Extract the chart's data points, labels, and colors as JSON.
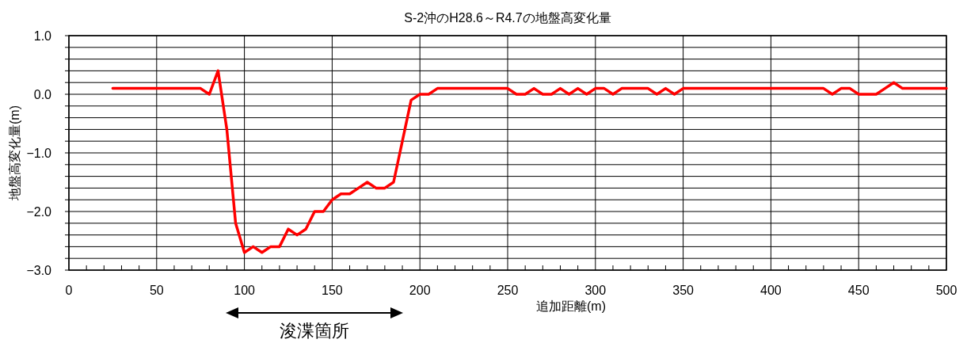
{
  "chart_data": {
    "type": "line",
    "title": "S-2沖のH28.6～R4.7の地盤高変化量",
    "xlabel": "追加距離(m)",
    "ylabel": "地盤高変化量(m)",
    "x": [
      25,
      30,
      35,
      40,
      45,
      50,
      55,
      60,
      65,
      70,
      75,
      80,
      85,
      90,
      95,
      100,
      105,
      110,
      115,
      120,
      125,
      130,
      135,
      140,
      145,
      150,
      155,
      160,
      165,
      170,
      175,
      180,
      185,
      195,
      200,
      205,
      210,
      215,
      220,
      225,
      230,
      235,
      240,
      245,
      250,
      255,
      260,
      265,
      270,
      275,
      280,
      285,
      290,
      295,
      300,
      305,
      310,
      315,
      320,
      325,
      330,
      335,
      340,
      345,
      350,
      355,
      360,
      365,
      370,
      375,
      380,
      385,
      390,
      395,
      400,
      405,
      410,
      415,
      420,
      425,
      430,
      435,
      440,
      445,
      450,
      455,
      460,
      465,
      470,
      475,
      480,
      485,
      490,
      495,
      500
    ],
    "series": [
      {
        "color": "#ff0000",
        "values": [
          0.1,
          0.1,
          0.1,
          0.1,
          0.1,
          0.1,
          0.1,
          0.1,
          0.1,
          0.1,
          0.1,
          0.0,
          0.4,
          -0.6,
          -2.2,
          -2.7,
          -2.6,
          -2.7,
          -2.6,
          -2.6,
          -2.3,
          -2.4,
          -2.3,
          -2.0,
          -2.0,
          -1.8,
          -1.7,
          -1.7,
          -1.6,
          -1.5,
          -1.6,
          -1.6,
          -1.5,
          -0.1,
          0.0,
          0.0,
          0.1,
          0.1,
          0.1,
          0.1,
          0.1,
          0.1,
          0.1,
          0.1,
          0.1,
          0.0,
          0.0,
          0.1,
          0.0,
          0.0,
          0.1,
          0.0,
          0.1,
          0.0,
          0.1,
          0.1,
          0.0,
          0.1,
          0.1,
          0.1,
          0.1,
          0.0,
          0.1,
          0.0,
          0.1,
          0.1,
          0.1,
          0.1,
          0.1,
          0.1,
          0.1,
          0.1,
          0.1,
          0.1,
          0.1,
          0.1,
          0.1,
          0.1,
          0.1,
          0.1,
          0.1,
          0.0,
          0.1,
          0.1,
          0.0,
          0.0,
          0.0,
          0.1,
          0.2,
          0.1,
          0.1,
          0.1,
          0.1,
          0.1,
          0.1
        ]
      }
    ],
    "xlim": [
      0,
      500
    ],
    "xticks": [
      0,
      {
        "value": 10,
        "label": null
      },
      {
        "value": 20,
        "label": null
      },
      {
        "value": 30,
        "label": null
      },
      {
        "value": 40,
        "label": null
      },
      50,
      {
        "value": 60,
        "label": null
      },
      {
        "value": 70,
        "label": null
      },
      {
        "value": 80,
        "label": null
      },
      {
        "value": 90,
        "label": null
      },
      100,
      {
        "value": 110,
        "label": null
      },
      {
        "value": 120,
        "label": null
      },
      {
        "value": 130,
        "label": null
      },
      {
        "value": 140,
        "label": null
      },
      150,
      {
        "value": 160,
        "label": null
      },
      {
        "value": 170,
        "label": null
      },
      {
        "value": 180,
        "label": null
      },
      {
        "value": 190,
        "label": null
      },
      200,
      {
        "value": 210,
        "label": null
      },
      {
        "value": 220,
        "label": null
      },
      {
        "value": 230,
        "label": null
      },
      {
        "value": 240,
        "label": null
      },
      250,
      {
        "value": 260,
        "label": null
      },
      {
        "value": 270,
        "label": null
      },
      {
        "value": 280,
        "label": null
      },
      {
        "value": 290,
        "label": null
      },
      300,
      {
        "value": 310,
        "label": null
      },
      {
        "value": 320,
        "label": null
      },
      {
        "value": 330,
        "label": null
      },
      {
        "value": 340,
        "label": null
      },
      350,
      {
        "value": 360,
        "label": null
      },
      {
        "value": 370,
        "label": null
      },
      {
        "value": 380,
        "label": null
      },
      {
        "value": 390,
        "label": null
      },
      400,
      {
        "value": 410,
        "label": null
      },
      {
        "value": 420,
        "label": null
      },
      {
        "value": 430,
        "label": null
      },
      {
        "value": 440,
        "label": null
      },
      450,
      {
        "value": 460,
        "label": null
      },
      {
        "value": 470,
        "label": null
      },
      {
        "value": 480,
        "label": null
      },
      {
        "value": 490,
        "label": null
      },
      500
    ],
    "ylim": [
      -3,
      1
    ],
    "yticks": [
      {
        "value": -3,
        "label": "−3.0"
      },
      {
        "value": -2.8,
        "label": null
      },
      {
        "value": -2.6,
        "label": null
      },
      {
        "value": -2.4,
        "label": null
      },
      {
        "value": -2.2,
        "label": null
      },
      {
        "value": -2,
        "label": "−2.0"
      },
      {
        "value": -1.8,
        "label": null
      },
      {
        "value": -1.6,
        "label": null
      },
      {
        "value": -1.4,
        "label": null
      },
      {
        "value": -1.2,
        "label": null
      },
      {
        "value": -1,
        "label": "−1.0"
      },
      {
        "value": -0.8,
        "label": null
      },
      {
        "value": -0.6,
        "label": null
      },
      {
        "value": -0.4,
        "label": null
      },
      {
        "value": -0.2,
        "label": null
      },
      {
        "value": 0,
        "label": "0.0"
      },
      {
        "value": 0.2,
        "label": null
      },
      {
        "value": 0.4,
        "label": null
      },
      {
        "value": 0.6,
        "label": null
      },
      {
        "value": 0.8,
        "label": null
      },
      {
        "value": 1,
        "label": "1.0"
      }
    ],
    "grid": true,
    "marker": "none",
    "line_style": "solid",
    "annotations": [
      "浚渫箇所"
    ]
  }
}
